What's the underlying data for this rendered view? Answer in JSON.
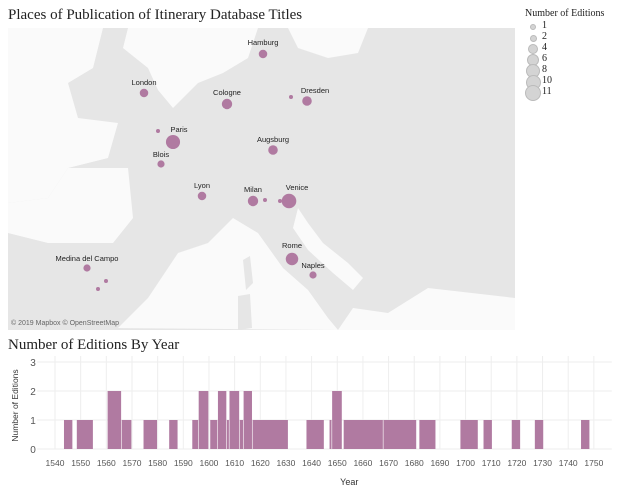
{
  "map": {
    "title": "Places of Publication of Itinerary Database Titles",
    "attribution": "© 2019 Mapbox © OpenStreetMap",
    "mark_color": "#b07aa1",
    "legend": {
      "title": "Number of Editions",
      "items": [
        "1",
        "2",
        "4",
        "6",
        "8",
        "10",
        "11"
      ]
    },
    "cities": [
      {
        "name": "Hamburg",
        "editions": 2
      },
      {
        "name": "London",
        "editions": 2
      },
      {
        "name": "Cologne",
        "editions": 4
      },
      {
        "name": "Dresden",
        "editions": 3
      },
      {
        "name": "Paris",
        "editions": 10
      },
      {
        "name": "Blois",
        "editions": 1
      },
      {
        "name": "Augsburg",
        "editions": 3
      },
      {
        "name": "Lyon",
        "editions": 2
      },
      {
        "name": "Milan",
        "editions": 4
      },
      {
        "name": "Venice",
        "editions": 11
      },
      {
        "name": "Rome",
        "editions": 7
      },
      {
        "name": "Naples",
        "editions": 1
      },
      {
        "name": "Medina del Campo",
        "editions": 1
      }
    ]
  },
  "chart_data": {
    "type": "bar",
    "title": "Number of Editions By Year",
    "xlabel": "Year",
    "ylabel": "Number of Editions",
    "xlim": [
      1533,
      1757
    ],
    "ylim": [
      0,
      3
    ],
    "yticks": [
      "0",
      "1",
      "2",
      "3"
    ],
    "xticks": [
      "1540",
      "1550",
      "1560",
      "1570",
      "1580",
      "1590",
      "1600",
      "1610",
      "1620",
      "1630",
      "1640",
      "1650",
      "1660",
      "1670",
      "1680",
      "1690",
      "1700",
      "1710",
      "1720",
      "1730",
      "1740",
      "1750"
    ],
    "grid": true,
    "color": "#b07aa1",
    "bars": [
      {
        "start": 1543.5,
        "end": 1547,
        "value": 1
      },
      {
        "start": 1548.5,
        "end": 1555,
        "value": 1
      },
      {
        "start": 1560.5,
        "end": 1566,
        "value": 2
      },
      {
        "start": 1566,
        "end": 1570,
        "value": 1
      },
      {
        "start": 1574.5,
        "end": 1580,
        "value": 1
      },
      {
        "start": 1584.5,
        "end": 1588,
        "value": 1
      },
      {
        "start": 1593.5,
        "end": 1596,
        "value": 1
      },
      {
        "start": 1596,
        "end": 1600,
        "value": 2
      },
      {
        "start": 1600.5,
        "end": 1603.5,
        "value": 1
      },
      {
        "start": 1603.5,
        "end": 1607,
        "value": 2
      },
      {
        "start": 1607,
        "end": 1608,
        "value": 1
      },
      {
        "start": 1608,
        "end": 1612,
        "value": 2
      },
      {
        "start": 1612,
        "end": 1613.5,
        "value": 1
      },
      {
        "start": 1613.5,
        "end": 1617,
        "value": 2
      },
      {
        "start": 1617,
        "end": 1631,
        "value": 1
      },
      {
        "start": 1638,
        "end": 1645,
        "value": 1
      },
      {
        "start": 1647,
        "end": 1648,
        "value": 1
      },
      {
        "start": 1648,
        "end": 1652,
        "value": 2
      },
      {
        "start": 1652.5,
        "end": 1668,
        "value": 1
      },
      {
        "start": 1668,
        "end": 1681,
        "value": 1
      },
      {
        "start": 1682,
        "end": 1688.5,
        "value": 1
      },
      {
        "start": 1698,
        "end": 1705,
        "value": 1
      },
      {
        "start": 1707,
        "end": 1710.5,
        "value": 1
      },
      {
        "start": 1718,
        "end": 1721.5,
        "value": 1
      },
      {
        "start": 1727,
        "end": 1730.5,
        "value": 1
      },
      {
        "start": 1745,
        "end": 1748.5,
        "value": 1
      }
    ]
  }
}
